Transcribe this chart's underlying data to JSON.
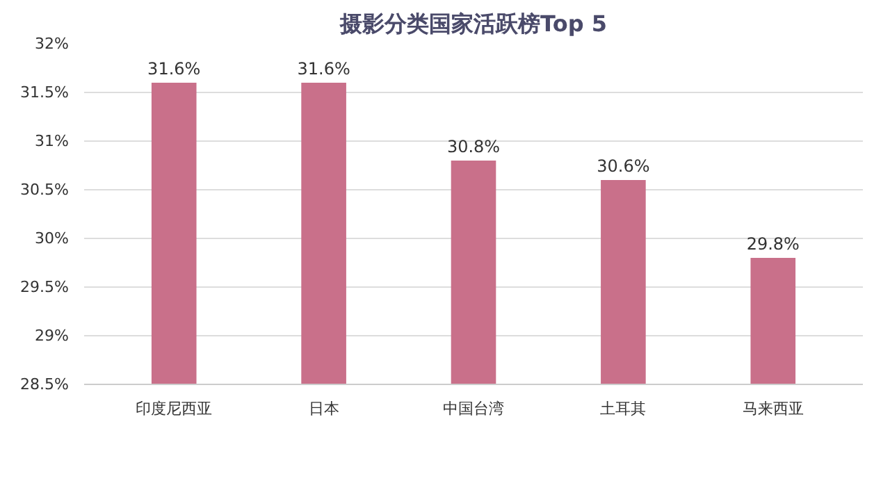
{
  "chart_data": {
    "type": "bar",
    "title": "摄影分类国家活跃榜Top 5",
    "categories": [
      "印度尼西亚",
      "日本",
      "中国台湾",
      "土耳其",
      "马来西亚"
    ],
    "values": [
      31.6,
      31.6,
      30.8,
      30.6,
      29.8
    ],
    "value_labels": [
      "31.6%",
      "31.6%",
      "30.8%",
      "30.6%",
      "29.8%"
    ],
    "color": "#c9708a",
    "ylim": [
      28.5,
      32
    ],
    "yticks": [
      {
        "value": 28.5,
        "label": "28.5%"
      },
      {
        "value": 29,
        "label": "29%"
      },
      {
        "value": 29.5,
        "label": "29.5%"
      },
      {
        "value": 30,
        "label": "30%"
      },
      {
        "value": 30.5,
        "label": "30.5%"
      },
      {
        "value": 31,
        "label": "31%"
      },
      {
        "value": 31.5,
        "label": "31.5%"
      },
      {
        "value": 32,
        "label": "32%"
      }
    ],
    "grid": "y"
  }
}
